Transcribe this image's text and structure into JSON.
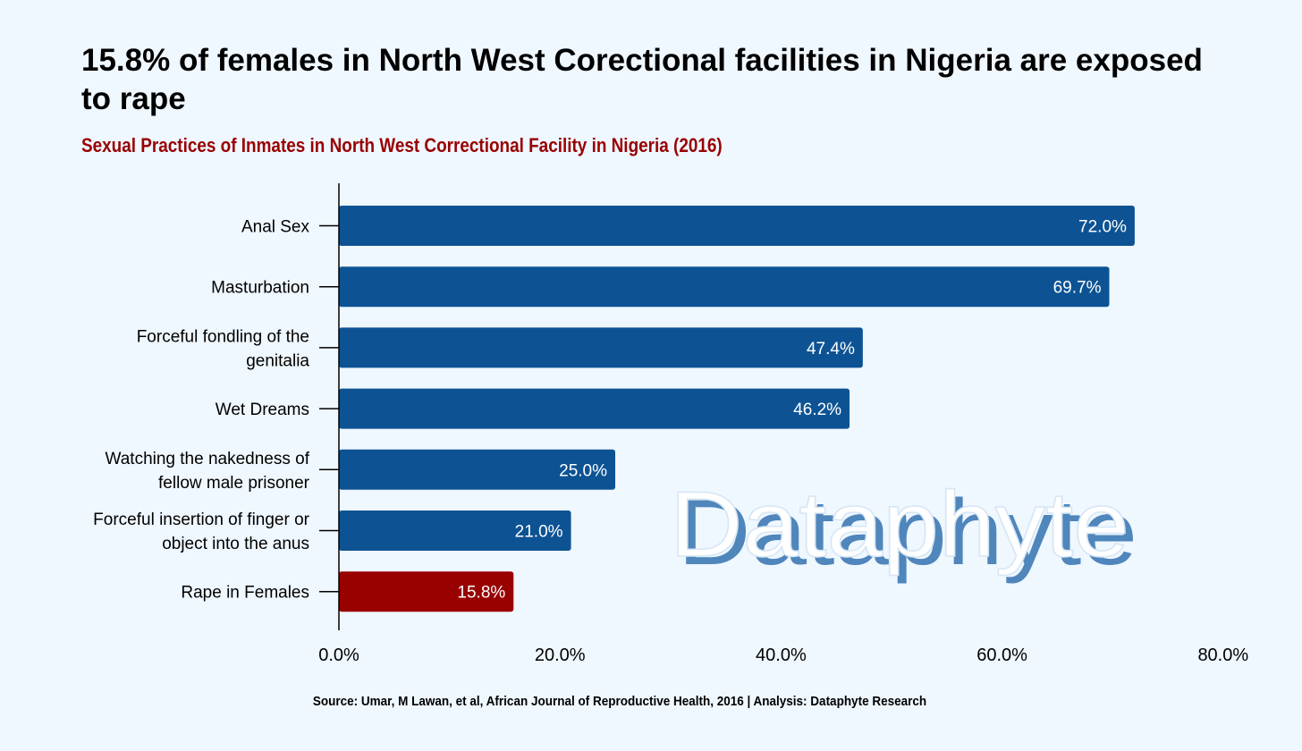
{
  "title": "15.8% of females in North West Corectional facilities in Nigeria are exposed to rape",
  "subtitle": "Sexual Practices of Inmates in North West Correctional Facility in Nigeria (2016)",
  "source": "Source: Umar, M Lawan, et al, African Journal of Reproductive Health, 2016 | Analysis: Dataphyte Research",
  "watermark": "Dataphyte",
  "colors": {
    "bar": "#0d5394",
    "highlight": "#990000",
    "background": "#eff7ff",
    "watermark_shadow": "#4f86bb"
  },
  "chart_data": {
    "type": "bar",
    "orientation": "horizontal",
    "categories": [
      [
        "Anal Sex"
      ],
      [
        "Masturbation"
      ],
      [
        "Forceful fondling of the",
        "genitalia"
      ],
      [
        "Wet Dreams"
      ],
      [
        "Watching the nakedness of",
        "fellow male prisoner"
      ],
      [
        "Forceful insertion of finger or",
        "object into the anus"
      ],
      [
        "Rape in Females"
      ]
    ],
    "values": [
      72.0,
      69.7,
      47.4,
      46.2,
      25.0,
      21.0,
      15.8
    ],
    "value_labels": [
      "72.0%",
      "69.7%",
      "47.4%",
      "46.2%",
      "25.0%",
      "21.0%",
      "15.8%"
    ],
    "highlight_index": 6,
    "xlim": [
      0,
      80
    ],
    "xticks": [
      0,
      20,
      40,
      60,
      80
    ],
    "xtick_labels": [
      "0.0%",
      "20.0%",
      "40.0%",
      "60.0%",
      "80.0%"
    ],
    "grid": false,
    "legend": "none"
  }
}
